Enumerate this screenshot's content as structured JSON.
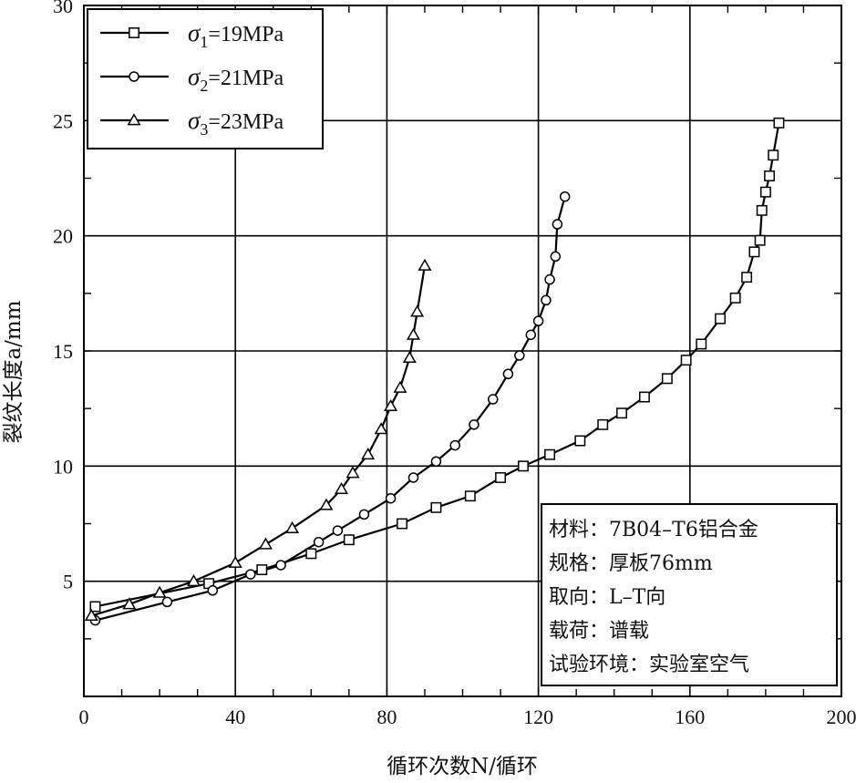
{
  "chart_data": {
    "type": "line",
    "title": "",
    "xlabel": "循环次数N/循环",
    "ylabel": "裂纹长度a/mm",
    "xlim": [
      0,
      200
    ],
    "ylim": [
      0,
      30
    ],
    "xticks": [
      0,
      40,
      80,
      120,
      160,
      200
    ],
    "yticks": [
      5,
      10,
      15,
      20,
      25,
      30
    ],
    "grid": true,
    "legend_position": "top-left",
    "series": [
      {
        "name": "σ1=19MPa",
        "sym": "σ",
        "sub": "1",
        "suffix": "=19MPa",
        "marker": "square",
        "x": [
          3,
          33,
          47,
          60,
          70,
          84,
          93,
          102,
          110,
          116,
          123,
          131,
          137,
          142,
          148,
          154,
          159,
          163,
          168,
          172,
          175,
          177,
          178.5,
          179,
          180,
          181,
          182,
          183.5
        ],
        "y": [
          3.9,
          4.9,
          5.5,
          6.2,
          6.8,
          7.5,
          8.2,
          8.7,
          9.5,
          10.0,
          10.5,
          11.1,
          11.8,
          12.3,
          13.0,
          13.8,
          14.6,
          15.3,
          16.4,
          17.3,
          18.2,
          19.3,
          19.8,
          21.1,
          21.9,
          22.6,
          23.5,
          24.9
        ]
      },
      {
        "name": "σ2=21MPa",
        "sym": "σ",
        "sub": "2",
        "suffix": "=21MPa",
        "marker": "circle",
        "x": [
          3,
          22,
          34,
          44,
          52,
          62,
          67,
          74,
          81,
          87,
          93,
          98,
          103,
          108,
          112,
          115,
          118,
          120,
          122,
          123,
          124.5,
          125,
          127
        ],
        "y": [
          3.3,
          4.1,
          4.6,
          5.3,
          5.7,
          6.7,
          7.2,
          7.9,
          8.6,
          9.5,
          10.2,
          10.9,
          11.8,
          12.9,
          14.0,
          14.8,
          15.7,
          16.3,
          17.2,
          18.1,
          19.1,
          20.5,
          21.7
        ]
      },
      {
        "name": "σ3=23MPa",
        "sym": "σ",
        "sub": "3",
        "suffix": "=23MPa",
        "marker": "triangle",
        "x": [
          2,
          12,
          20,
          29,
          40,
          48,
          55,
          64,
          68,
          71,
          75,
          78.5,
          81,
          83.5,
          86,
          87,
          88,
          90
        ],
        "y": [
          3.5,
          4.0,
          4.5,
          5.0,
          5.8,
          6.6,
          7.3,
          8.3,
          9.0,
          9.7,
          10.5,
          11.6,
          12.6,
          13.4,
          14.7,
          15.7,
          16.7,
          18.7
        ]
      }
    ],
    "info_box": [
      "材料：7B04–T6铝合金",
      "规格：厚板76mm",
      "取向：L–T向",
      "载荷：谱载",
      "试验环境：实验室空气"
    ]
  }
}
